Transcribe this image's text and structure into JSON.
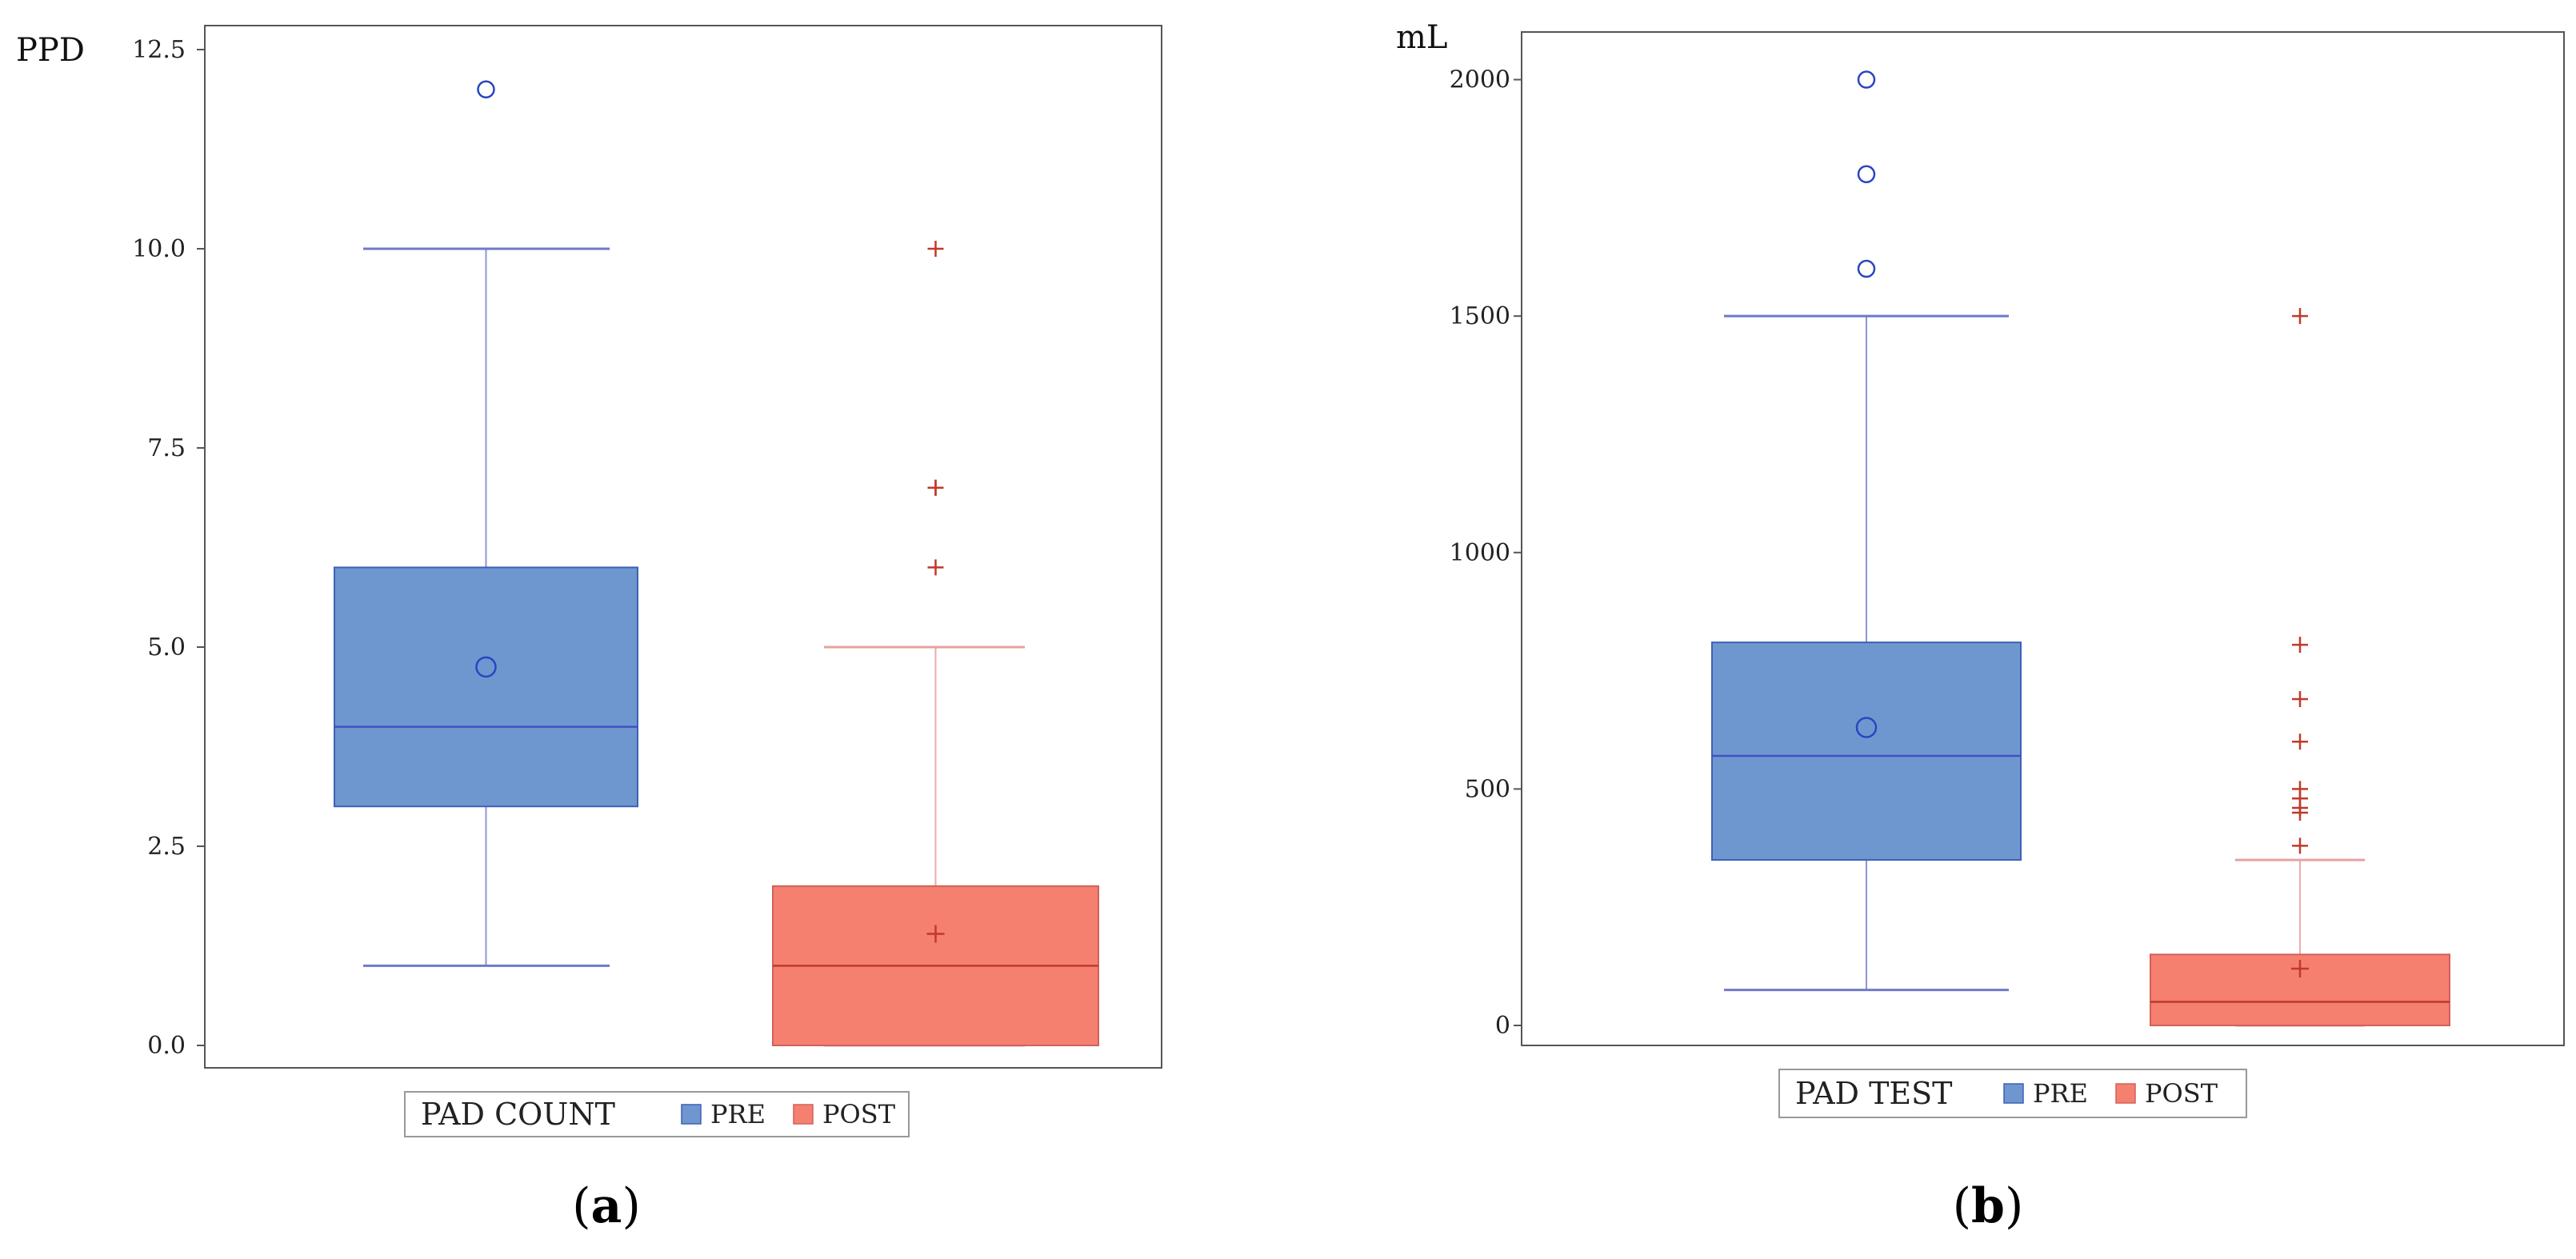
{
  "chart_data": [
    {
      "type": "box",
      "panel_label": "a",
      "ylabel": "PPD",
      "ylim": [
        0,
        12.5
      ],
      "y_ticks": [
        "0.0",
        "2.5",
        "5.0",
        "7.5",
        "10.0",
        "12.5"
      ],
      "tick_values": [
        0,
        2.5,
        5,
        7.5,
        10,
        12.5
      ],
      "legend": {
        "title": "PAD COUNT",
        "position": "bottom",
        "entries": [
          "PRE",
          "POST"
        ]
      },
      "series": [
        {
          "name": "PRE",
          "color": "#6f97cf",
          "edge": "#3f5fb8",
          "min": 1,
          "q1": 3,
          "median": 4,
          "q3": 6,
          "max": 10,
          "mean": 4.75,
          "mean_marker": "circle",
          "outliers": [
            12
          ]
        },
        {
          "name": "POST",
          "color": "#f6806f",
          "edge": "#d0605a",
          "min": 0,
          "q1": 0,
          "median": 1,
          "q3": 2,
          "max": 5,
          "mean": 1.4,
          "mean_marker": "plus",
          "outliers": [
            6,
            7,
            7,
            10
          ]
        }
      ]
    },
    {
      "type": "box",
      "panel_label": "b",
      "ylabel": "mL",
      "ylim": [
        0,
        2050
      ],
      "y_ticks": [
        "0",
        "500",
        "1000",
        "1500",
        "2000"
      ],
      "tick_values": [
        0,
        500,
        1000,
        1500,
        2000
      ],
      "legend": {
        "title": "PAD TEST",
        "position": "bottom",
        "entries": [
          "PRE",
          "POST"
        ]
      },
      "series": [
        {
          "name": "PRE",
          "color": "#6f97cf",
          "edge": "#3f5fb8",
          "min": 75,
          "q1": 350,
          "median": 570,
          "q3": 810,
          "max": 1500,
          "mean": 630,
          "mean_marker": "circle",
          "outliers": [
            1600,
            1800,
            2000
          ]
        },
        {
          "name": "POST",
          "color": "#f6806f",
          "edge": "#d0605a",
          "min": 0,
          "q1": 0,
          "median": 50,
          "q3": 150,
          "max": 350,
          "mean": 120,
          "mean_marker": "plus",
          "outliers": [
            380,
            450,
            460,
            480,
            500,
            600,
            690,
            805,
            1500
          ]
        }
      ]
    }
  ]
}
